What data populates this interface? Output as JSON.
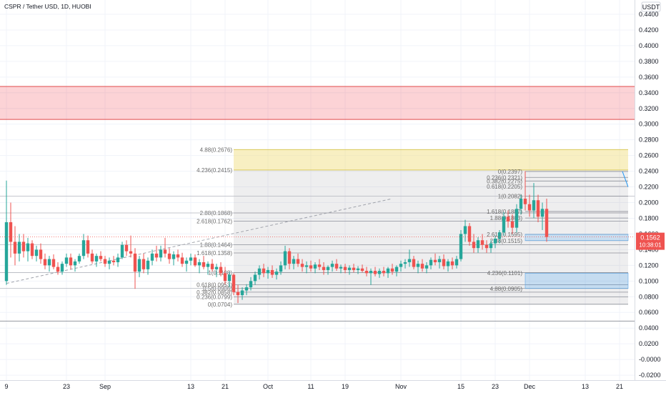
{
  "chart_data": {
    "type": "candlestick",
    "title": "CSPR / Tether USD, 1D, HUOBI",
    "currency_label": "USDT",
    "ylim": [
      -0.03,
      0.45
    ],
    "y_ticks": [
      "0.4400",
      "0.4200",
      "0.4000",
      "0.3800",
      "0.3600",
      "0.3400",
      "0.3200",
      "0.3000",
      "0.2800",
      "0.2600",
      "0.2400",
      "0.2200",
      "0.2000",
      "0.1800",
      "0.1600",
      "0.1400",
      "0.1200",
      "0.1000",
      "0.0800",
      "0.0600",
      "0.0400",
      "0.0200",
      "-0.0000",
      "-0.0200"
    ],
    "y_tick_values": [
      0.44,
      0.42,
      0.4,
      0.38,
      0.36,
      0.34,
      0.32,
      0.3,
      0.28,
      0.26,
      0.24,
      0.22,
      0.2,
      0.18,
      0.16,
      0.14,
      0.12,
      0.1,
      0.08,
      0.06,
      0.04,
      0.02,
      0.0,
      -0.02
    ],
    "x_ticks": [
      {
        "label": "9",
        "day": 0
      },
      {
        "label": "23",
        "day": 14
      },
      {
        "label": "Sep",
        "day": 23
      },
      {
        "label": "13",
        "day": 43
      },
      {
        "label": "21",
        "day": 51
      },
      {
        "label": "Oct",
        "day": 61
      },
      {
        "label": "11",
        "day": 71
      },
      {
        "label": "19",
        "day": 79
      },
      {
        "label": "Nov",
        "day": 92
      },
      {
        "label": "15",
        "day": 106
      },
      {
        "label": "23",
        "day": 114
      },
      {
        "label": "Dec",
        "day": 122
      },
      {
        "label": "13",
        "day": 135
      },
      {
        "label": "21",
        "day": 143
      }
    ],
    "last_price": {
      "price": "0.1562",
      "countdown": "10:38:01",
      "value": 0.1562
    },
    "resistance_zone": [
      0.306,
      0.348
    ],
    "support_line": 0.049,
    "fib_left": {
      "day_start": 53,
      "day_end": 145,
      "levels": [
        {
          "label": "4.88(0.2676)",
          "value": 0.2676
        },
        {
          "label": "4.236(0.2415)",
          "value": 0.2415
        },
        {
          "label": "2.88(0.1868)",
          "value": 0.1868
        },
        {
          "label": "2.618(0.1762)",
          "value": 0.1762
        },
        {
          "label": "1.88(0.1464)",
          "value": 0.1464
        },
        {
          "label": "1.618(0.1358)",
          "value": 0.1358
        },
        {
          "label": "1(0.1108)",
          "value": 0.1108
        },
        {
          "label": "0.618(0.0953)",
          "value": 0.0953
        },
        {
          "label": "0.5(0.0906)",
          "value": 0.0906
        },
        {
          "label": "0.382(0.0858)",
          "value": 0.0858
        },
        {
          "label": "0.236(0.0799)",
          "value": 0.0799
        },
        {
          "label": "0(0.0704)",
          "value": 0.0704
        }
      ]
    },
    "fib_right": {
      "day_start": 121,
      "day_end": 145,
      "levels": [
        {
          "label": "0(0.2397)",
          "value": 0.2397
        },
        {
          "label": "0.236(0.2321)",
          "value": 0.2321
        },
        {
          "label": "0.382(0.2275)",
          "value": 0.2275
        },
        {
          "label": "0.618(0.2205)",
          "value": 0.2205
        },
        {
          "label": "1(0.2082)",
          "value": 0.2082
        },
        {
          "label": "1.618(0.1887)",
          "value": 0.1887
        },
        {
          "label": "1.88(0.1803)",
          "value": 0.1803
        },
        {
          "label": "2.618(0.1595)",
          "value": 0.1595
        },
        {
          "label": "2.88(0.1515)",
          "value": 0.1515
        },
        {
          "label": "4.236(0.1101)",
          "value": 0.1101
        },
        {
          "label": "4.88(0.0905)",
          "value": 0.0905
        }
      ]
    },
    "candles": [
      {
        "day": 0,
        "o": 0.1,
        "h": 0.228,
        "l": 0.095,
        "c": 0.175
      },
      {
        "day": 1,
        "o": 0.175,
        "h": 0.2,
        "l": 0.13,
        "c": 0.15
      },
      {
        "day": 2,
        "o": 0.15,
        "h": 0.17,
        "l": 0.12,
        "c": 0.135
      },
      {
        "day": 3,
        "o": 0.135,
        "h": 0.16,
        "l": 0.125,
        "c": 0.15
      },
      {
        "day": 4,
        "o": 0.15,
        "h": 0.16,
        "l": 0.13,
        "c": 0.138
      },
      {
        "day": 5,
        "o": 0.138,
        "h": 0.155,
        "l": 0.125,
        "c": 0.148
      },
      {
        "day": 6,
        "o": 0.148,
        "h": 0.152,
        "l": 0.128,
        "c": 0.132
      },
      {
        "day": 7,
        "o": 0.132,
        "h": 0.145,
        "l": 0.125,
        "c": 0.14
      },
      {
        "day": 8,
        "o": 0.14,
        "h": 0.148,
        "l": 0.122,
        "c": 0.128
      },
      {
        "day": 9,
        "o": 0.128,
        "h": 0.135,
        "l": 0.115,
        "c": 0.12
      },
      {
        "day": 10,
        "o": 0.12,
        "h": 0.132,
        "l": 0.112,
        "c": 0.128
      },
      {
        "day": 11,
        "o": 0.128,
        "h": 0.134,
        "l": 0.115,
        "c": 0.118
      },
      {
        "day": 12,
        "o": 0.118,
        "h": 0.124,
        "l": 0.108,
        "c": 0.112
      },
      {
        "day": 13,
        "o": 0.112,
        "h": 0.125,
        "l": 0.108,
        "c": 0.122
      },
      {
        "day": 14,
        "o": 0.122,
        "h": 0.135,
        "l": 0.118,
        "c": 0.13
      },
      {
        "day": 15,
        "o": 0.13,
        "h": 0.135,
        "l": 0.115,
        "c": 0.12
      },
      {
        "day": 16,
        "o": 0.12,
        "h": 0.128,
        "l": 0.112,
        "c": 0.125
      },
      {
        "day": 17,
        "o": 0.125,
        "h": 0.135,
        "l": 0.122,
        "c": 0.132
      },
      {
        "day": 18,
        "o": 0.132,
        "h": 0.16,
        "l": 0.128,
        "c": 0.152
      },
      {
        "day": 19,
        "o": 0.152,
        "h": 0.158,
        "l": 0.13,
        "c": 0.135
      },
      {
        "day": 20,
        "o": 0.135,
        "h": 0.14,
        "l": 0.122,
        "c": 0.125
      },
      {
        "day": 21,
        "o": 0.125,
        "h": 0.135,
        "l": 0.118,
        "c": 0.132
      },
      {
        "day": 22,
        "o": 0.132,
        "h": 0.138,
        "l": 0.125,
        "c": 0.128
      },
      {
        "day": 23,
        "o": 0.128,
        "h": 0.132,
        "l": 0.118,
        "c": 0.122
      },
      {
        "day": 24,
        "o": 0.122,
        "h": 0.13,
        "l": 0.115,
        "c": 0.126
      },
      {
        "day": 25,
        "o": 0.126,
        "h": 0.132,
        "l": 0.12,
        "c": 0.124
      },
      {
        "day": 26,
        "o": 0.124,
        "h": 0.135,
        "l": 0.118,
        "c": 0.13
      },
      {
        "day": 27,
        "o": 0.13,
        "h": 0.15,
        "l": 0.128,
        "c": 0.146
      },
      {
        "day": 28,
        "o": 0.146,
        "h": 0.152,
        "l": 0.132,
        "c": 0.138
      },
      {
        "day": 29,
        "o": 0.138,
        "h": 0.158,
        "l": 0.13,
        "c": 0.135
      },
      {
        "day": 30,
        "o": 0.135,
        "h": 0.142,
        "l": 0.09,
        "c": 0.112
      },
      {
        "day": 31,
        "o": 0.112,
        "h": 0.132,
        "l": 0.105,
        "c": 0.128
      },
      {
        "day": 32,
        "o": 0.128,
        "h": 0.135,
        "l": 0.11,
        "c": 0.115
      },
      {
        "day": 33,
        "o": 0.115,
        "h": 0.13,
        "l": 0.108,
        "c": 0.126
      },
      {
        "day": 34,
        "o": 0.126,
        "h": 0.14,
        "l": 0.12,
        "c": 0.135
      },
      {
        "day": 35,
        "o": 0.135,
        "h": 0.145,
        "l": 0.125,
        "c": 0.13
      },
      {
        "day": 36,
        "o": 0.13,
        "h": 0.145,
        "l": 0.125,
        "c": 0.14
      },
      {
        "day": 37,
        "o": 0.14,
        "h": 0.155,
        "l": 0.13,
        "c": 0.135
      },
      {
        "day": 38,
        "o": 0.135,
        "h": 0.142,
        "l": 0.122,
        "c": 0.128
      },
      {
        "day": 39,
        "o": 0.128,
        "h": 0.138,
        "l": 0.12,
        "c": 0.134
      },
      {
        "day": 40,
        "o": 0.134,
        "h": 0.14,
        "l": 0.125,
        "c": 0.13
      },
      {
        "day": 41,
        "o": 0.13,
        "h": 0.136,
        "l": 0.118,
        "c": 0.122
      },
      {
        "day": 42,
        "o": 0.122,
        "h": 0.13,
        "l": 0.112,
        "c": 0.126
      },
      {
        "day": 43,
        "o": 0.126,
        "h": 0.135,
        "l": 0.12,
        "c": 0.13
      },
      {
        "day": 44,
        "o": 0.13,
        "h": 0.134,
        "l": 0.118,
        "c": 0.12
      },
      {
        "day": 45,
        "o": 0.12,
        "h": 0.128,
        "l": 0.11,
        "c": 0.124
      },
      {
        "day": 46,
        "o": 0.124,
        "h": 0.132,
        "l": 0.115,
        "c": 0.118
      },
      {
        "day": 47,
        "o": 0.118,
        "h": 0.125,
        "l": 0.108,
        "c": 0.122
      },
      {
        "day": 48,
        "o": 0.122,
        "h": 0.128,
        "l": 0.112,
        "c": 0.115
      },
      {
        "day": 49,
        "o": 0.115,
        "h": 0.122,
        "l": 0.105,
        "c": 0.118
      },
      {
        "day": 50,
        "o": 0.118,
        "h": 0.124,
        "l": 0.106,
        "c": 0.11
      },
      {
        "day": 51,
        "o": 0.11,
        "h": 0.118,
        "l": 0.096,
        "c": 0.1
      },
      {
        "day": 52,
        "o": 0.1,
        "h": 0.112,
        "l": 0.092,
        "c": 0.108
      },
      {
        "day": 53,
        "o": 0.108,
        "h": 0.11,
        "l": 0.082,
        "c": 0.086
      },
      {
        "day": 54,
        "o": 0.086,
        "h": 0.095,
        "l": 0.072,
        "c": 0.082
      },
      {
        "day": 55,
        "o": 0.082,
        "h": 0.092,
        "l": 0.076,
        "c": 0.088
      },
      {
        "day": 56,
        "o": 0.088,
        "h": 0.096,
        "l": 0.082,
        "c": 0.092
      },
      {
        "day": 57,
        "o": 0.092,
        "h": 0.105,
        "l": 0.088,
        "c": 0.1
      },
      {
        "day": 58,
        "o": 0.1,
        "h": 0.112,
        "l": 0.095,
        "c": 0.108
      },
      {
        "day": 59,
        "o": 0.108,
        "h": 0.12,
        "l": 0.102,
        "c": 0.116
      },
      {
        "day": 60,
        "o": 0.116,
        "h": 0.122,
        "l": 0.105,
        "c": 0.11
      },
      {
        "day": 61,
        "o": 0.11,
        "h": 0.118,
        "l": 0.103,
        "c": 0.114
      },
      {
        "day": 62,
        "o": 0.114,
        "h": 0.12,
        "l": 0.104,
        "c": 0.108
      },
      {
        "day": 63,
        "o": 0.108,
        "h": 0.116,
        "l": 0.102,
        "c": 0.112
      },
      {
        "day": 64,
        "o": 0.112,
        "h": 0.125,
        "l": 0.108,
        "c": 0.12
      },
      {
        "day": 65,
        "o": 0.12,
        "h": 0.145,
        "l": 0.115,
        "c": 0.138
      },
      {
        "day": 66,
        "o": 0.138,
        "h": 0.142,
        "l": 0.115,
        "c": 0.122
      },
      {
        "day": 67,
        "o": 0.122,
        "h": 0.132,
        "l": 0.115,
        "c": 0.128
      },
      {
        "day": 68,
        "o": 0.128,
        "h": 0.135,
        "l": 0.118,
        "c": 0.122
      },
      {
        "day": 69,
        "o": 0.122,
        "h": 0.128,
        "l": 0.112,
        "c": 0.118
      },
      {
        "day": 70,
        "o": 0.118,
        "h": 0.125,
        "l": 0.11,
        "c": 0.12
      },
      {
        "day": 71,
        "o": 0.12,
        "h": 0.126,
        "l": 0.112,
        "c": 0.116
      },
      {
        "day": 72,
        "o": 0.116,
        "h": 0.124,
        "l": 0.11,
        "c": 0.121
      },
      {
        "day": 73,
        "o": 0.121,
        "h": 0.128,
        "l": 0.114,
        "c": 0.118
      },
      {
        "day": 74,
        "o": 0.118,
        "h": 0.124,
        "l": 0.108,
        "c": 0.114
      },
      {
        "day": 75,
        "o": 0.114,
        "h": 0.12,
        "l": 0.108,
        "c": 0.118
      },
      {
        "day": 76,
        "o": 0.118,
        "h": 0.126,
        "l": 0.112,
        "c": 0.122
      },
      {
        "day": 77,
        "o": 0.122,
        "h": 0.128,
        "l": 0.113,
        "c": 0.116
      },
      {
        "day": 78,
        "o": 0.116,
        "h": 0.121,
        "l": 0.11,
        "c": 0.118
      },
      {
        "day": 79,
        "o": 0.118,
        "h": 0.122,
        "l": 0.11,
        "c": 0.114
      },
      {
        "day": 80,
        "o": 0.114,
        "h": 0.12,
        "l": 0.108,
        "c": 0.117
      },
      {
        "day": 81,
        "o": 0.117,
        "h": 0.122,
        "l": 0.111,
        "c": 0.114
      },
      {
        "day": 82,
        "o": 0.114,
        "h": 0.119,
        "l": 0.109,
        "c": 0.116
      },
      {
        "day": 83,
        "o": 0.116,
        "h": 0.121,
        "l": 0.111,
        "c": 0.113
      },
      {
        "day": 84,
        "o": 0.113,
        "h": 0.118,
        "l": 0.106,
        "c": 0.11
      },
      {
        "day": 85,
        "o": 0.11,
        "h": 0.116,
        "l": 0.095,
        "c": 0.113
      },
      {
        "day": 86,
        "o": 0.113,
        "h": 0.118,
        "l": 0.106,
        "c": 0.109
      },
      {
        "day": 87,
        "o": 0.109,
        "h": 0.116,
        "l": 0.104,
        "c": 0.113
      },
      {
        "day": 88,
        "o": 0.113,
        "h": 0.118,
        "l": 0.106,
        "c": 0.11
      },
      {
        "day": 89,
        "o": 0.11,
        "h": 0.118,
        "l": 0.104,
        "c": 0.116
      },
      {
        "day": 90,
        "o": 0.116,
        "h": 0.122,
        "l": 0.108,
        "c": 0.112
      },
      {
        "day": 91,
        "o": 0.112,
        "h": 0.12,
        "l": 0.106,
        "c": 0.118
      },
      {
        "day": 92,
        "o": 0.118,
        "h": 0.126,
        "l": 0.112,
        "c": 0.122
      },
      {
        "day": 93,
        "o": 0.122,
        "h": 0.128,
        "l": 0.116,
        "c": 0.124
      },
      {
        "day": 94,
        "o": 0.124,
        "h": 0.14,
        "l": 0.118,
        "c": 0.128
      },
      {
        "day": 95,
        "o": 0.128,
        "h": 0.132,
        "l": 0.115,
        "c": 0.118
      },
      {
        "day": 96,
        "o": 0.118,
        "h": 0.126,
        "l": 0.11,
        "c": 0.122
      },
      {
        "day": 97,
        "o": 0.122,
        "h": 0.128,
        "l": 0.112,
        "c": 0.116
      },
      {
        "day": 98,
        "o": 0.116,
        "h": 0.124,
        "l": 0.11,
        "c": 0.12
      },
      {
        "day": 99,
        "o": 0.12,
        "h": 0.13,
        "l": 0.115,
        "c": 0.127
      },
      {
        "day": 100,
        "o": 0.127,
        "h": 0.135,
        "l": 0.12,
        "c": 0.124
      },
      {
        "day": 101,
        "o": 0.124,
        "h": 0.132,
        "l": 0.116,
        "c": 0.128
      },
      {
        "day": 102,
        "o": 0.128,
        "h": 0.134,
        "l": 0.115,
        "c": 0.119
      },
      {
        "day": 103,
        "o": 0.119,
        "h": 0.128,
        "l": 0.112,
        "c": 0.125
      },
      {
        "day": 104,
        "o": 0.125,
        "h": 0.13,
        "l": 0.115,
        "c": 0.12
      },
      {
        "day": 105,
        "o": 0.12,
        "h": 0.132,
        "l": 0.116,
        "c": 0.128
      },
      {
        "day": 106,
        "o": 0.128,
        "h": 0.165,
        "l": 0.125,
        "c": 0.16
      },
      {
        "day": 107,
        "o": 0.16,
        "h": 0.178,
        "l": 0.15,
        "c": 0.17
      },
      {
        "day": 108,
        "o": 0.17,
        "h": 0.174,
        "l": 0.145,
        "c": 0.15
      },
      {
        "day": 109,
        "o": 0.15,
        "h": 0.16,
        "l": 0.136,
        "c": 0.142
      },
      {
        "day": 110,
        "o": 0.142,
        "h": 0.156,
        "l": 0.136,
        "c": 0.152
      },
      {
        "day": 111,
        "o": 0.152,
        "h": 0.16,
        "l": 0.14,
        "c": 0.146
      },
      {
        "day": 112,
        "o": 0.146,
        "h": 0.152,
        "l": 0.136,
        "c": 0.142
      },
      {
        "day": 113,
        "o": 0.142,
        "h": 0.152,
        "l": 0.136,
        "c": 0.148
      },
      {
        "day": 114,
        "o": 0.148,
        "h": 0.158,
        "l": 0.142,
        "c": 0.154
      },
      {
        "day": 115,
        "o": 0.154,
        "h": 0.165,
        "l": 0.148,
        "c": 0.162
      },
      {
        "day": 116,
        "o": 0.162,
        "h": 0.188,
        "l": 0.158,
        "c": 0.182
      },
      {
        "day": 117,
        "o": 0.182,
        "h": 0.19,
        "l": 0.168,
        "c": 0.176
      },
      {
        "day": 118,
        "o": 0.176,
        "h": 0.185,
        "l": 0.16,
        "c": 0.168
      },
      {
        "day": 119,
        "o": 0.168,
        "h": 0.198,
        "l": 0.162,
        "c": 0.192
      },
      {
        "day": 120,
        "o": 0.192,
        "h": 0.21,
        "l": 0.185,
        "c": 0.205
      },
      {
        "day": 121,
        "o": 0.205,
        "h": 0.24,
        "l": 0.19,
        "c": 0.198
      },
      {
        "day": 122,
        "o": 0.198,
        "h": 0.21,
        "l": 0.182,
        "c": 0.19
      },
      {
        "day": 123,
        "o": 0.19,
        "h": 0.225,
        "l": 0.18,
        "c": 0.203
      },
      {
        "day": 124,
        "o": 0.203,
        "h": 0.21,
        "l": 0.175,
        "c": 0.182
      },
      {
        "day": 125,
        "o": 0.182,
        "h": 0.2,
        "l": 0.165,
        "c": 0.192
      },
      {
        "day": 126,
        "o": 0.192,
        "h": 0.205,
        "l": 0.15,
        "c": 0.1562
      }
    ]
  }
}
